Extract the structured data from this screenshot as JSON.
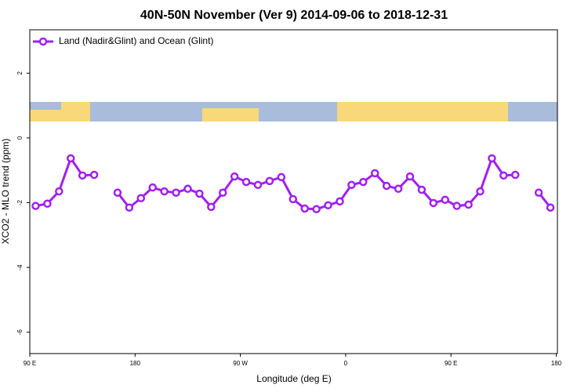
{
  "chart_data": {
    "type": "line",
    "title": "40N-50N November (Ver 9)   2014-09-06 to 2018-12-31",
    "x_label": "Longitude (deg E)",
    "y_label": "XCO2 - MLO trend (ppm)",
    "x": [
      95,
      105,
      115,
      125,
      135,
      145,
      155,
      165,
      175,
      185,
      195,
      205,
      215,
      225,
      235,
      245,
      255,
      265,
      275,
      285,
      295,
      305,
      315,
      325,
      335,
      345,
      355,
      365,
      375,
      385,
      395,
      405,
      415,
      425,
      435,
      445,
      455,
      465,
      475,
      485,
      495,
      505,
      515,
      525,
      535
    ],
    "series": [
      {
        "name": "Land (Nadir&Glint) and Ocean (Glint)",
        "color": "#a020f0",
        "values": [
          -2.1,
          -2.03,
          -1.65,
          -0.63,
          -1.16,
          -1.14,
          null,
          -1.69,
          -2.15,
          -1.86,
          -1.53,
          -1.65,
          -1.69,
          -1.57,
          -1.72,
          -2.13,
          -1.69,
          -1.19,
          -1.36,
          -1.45,
          -1.33,
          -1.21,
          -1.89,
          -2.18,
          -2.2,
          -2.08,
          -1.96,
          -1.45,
          -1.36,
          -1.09,
          -1.48,
          -1.57,
          -1.19,
          -1.6,
          -2.01,
          -1.91,
          -2.1,
          -2.06,
          -1.65,
          -0.63,
          -1.16,
          -1.14,
          null,
          -1.69,
          -2.15
        ]
      }
    ],
    "xlim": [
      90,
      541
    ],
    "xticks": [
      {
        "value": 90,
        "label": "90 E"
      },
      {
        "value": 180,
        "label": "180"
      },
      {
        "value": 270,
        "label": "90 W"
      },
      {
        "value": 360,
        "label": "0"
      },
      {
        "value": 450,
        "label": "90 E"
      },
      {
        "value": 540,
        "label": "180"
      }
    ],
    "ylim": [
      -6.66,
      3.34
    ],
    "yticks": [
      -6,
      -4,
      -2,
      0,
      2
    ],
    "legend": "top-left"
  }
}
